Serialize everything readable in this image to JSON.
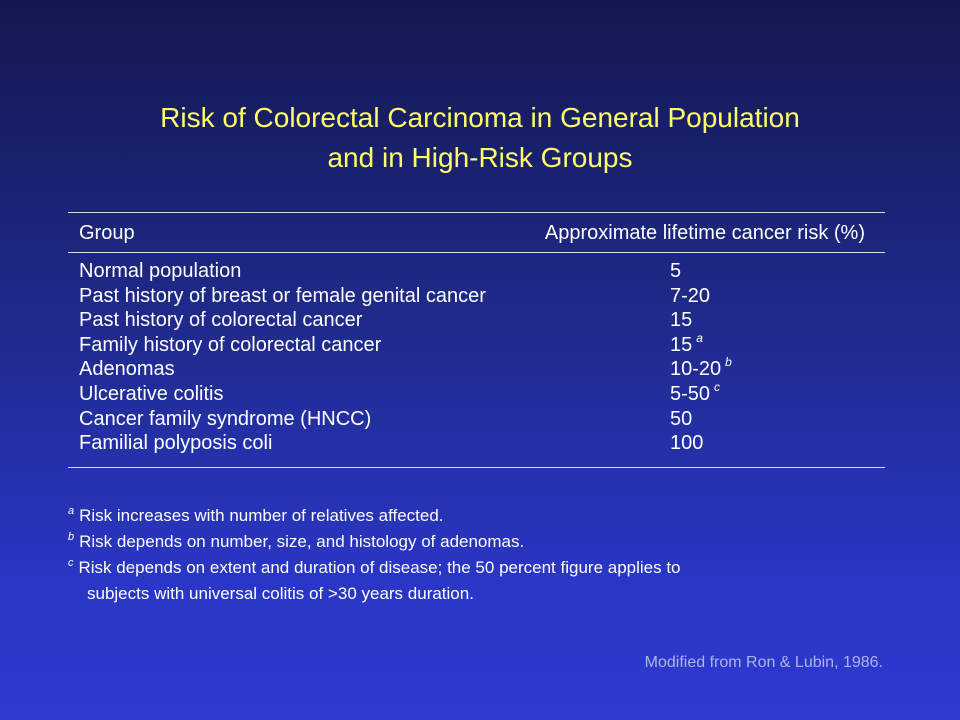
{
  "slide": {
    "title_line1": "Risk of Colorectal Carcinoma in General Population",
    "title_line2": "and in High-Risk Groups"
  },
  "table": {
    "header": {
      "group": "Group",
      "risk": "Approximate lifetime cancer risk (%)"
    },
    "rows": [
      {
        "group": "Normal population",
        "risk": "5",
        "note": ""
      },
      {
        "group": "Past history of breast or female genital cancer",
        "risk": "7-20",
        "note": ""
      },
      {
        "group": "Past history of colorectal cancer",
        "risk": "15",
        "note": ""
      },
      {
        "group": "Family history of colorectal cancer",
        "risk": "15",
        "note": "a"
      },
      {
        "group": "Adenomas",
        "risk": "10-20",
        "note": "b"
      },
      {
        "group": "Ulcerative colitis",
        "risk": "5-50",
        "note": "c"
      },
      {
        "group": "Cancer family syndrome (HNCC)",
        "risk": "50",
        "note": ""
      },
      {
        "group": "Familial polyposis coli",
        "risk": "100",
        "note": ""
      }
    ]
  },
  "footnotes": [
    {
      "mark": "a",
      "text": "Risk increases with number of relatives affected.",
      "continuation": ""
    },
    {
      "mark": "b",
      "text": "Risk depends on number, size, and histology of adenomas.",
      "continuation": ""
    },
    {
      "mark": "c",
      "text": "Risk depends on extent and duration of disease; the 50 percent figure applies to",
      "continuation": "subjects with universal colitis of >30 years duration."
    }
  ],
  "source": "Modified from Ron & Lubin, 1986.",
  "colors": {
    "title": "#ffff66",
    "text": "#ffffff",
    "source": "#aeb4e8",
    "background_top": "#141850",
    "background_bottom": "#2e3ad0"
  }
}
